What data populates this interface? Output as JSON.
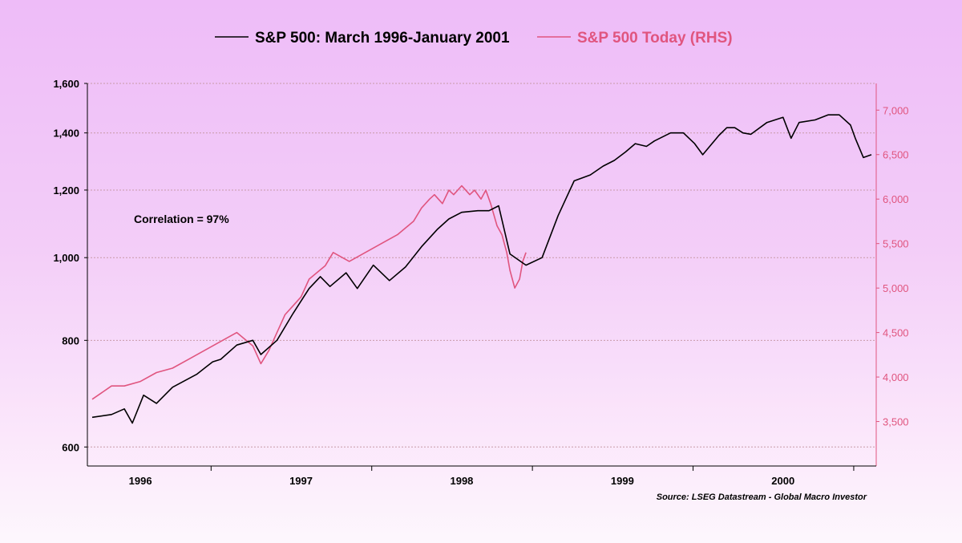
{
  "chart_data": {
    "type": "line",
    "series": [
      {
        "name": "S&P 500: March 1996-January 2001",
        "color": "#000000",
        "axis": "left",
        "x": [
          1996.2,
          1996.32,
          1996.4,
          1996.45,
          1996.52,
          1996.6,
          1996.7,
          1996.85,
          1996.95,
          1997.0,
          1997.1,
          1997.2,
          1997.25,
          1997.35,
          1997.45,
          1997.55,
          1997.62,
          1997.68,
          1997.78,
          1997.85,
          1997.95,
          1998.05,
          1998.15,
          1998.25,
          1998.35,
          1998.42,
          1998.5,
          1998.6,
          1998.67,
          1998.73,
          1998.8,
          1998.9,
          1999.0,
          1999.1,
          1999.2,
          1999.3,
          1999.38,
          1999.45,
          1999.52,
          1999.58,
          1999.65,
          1999.7,
          1999.8,
          1999.88,
          1999.95,
          2000.0,
          2000.1,
          2000.15,
          2000.2,
          2000.25,
          2000.3,
          2000.4,
          2000.5,
          2000.55,
          2000.6,
          2000.7,
          2000.78,
          2000.85,
          2000.92,
          2000.95,
          2001.0,
          2001.05
        ],
        "values": [
          650,
          655,
          665,
          640,
          690,
          675,
          705,
          730,
          755,
          760,
          790,
          800,
          770,
          800,
          860,
          920,
          950,
          925,
          960,
          920,
          980,
          940,
          975,
          1030,
          1080,
          1110,
          1130,
          1135,
          1135,
          1150,
          1010,
          980,
          1000,
          1120,
          1230,
          1250,
          1280,
          1300,
          1330,
          1360,
          1350,
          1370,
          1400,
          1400,
          1360,
          1320,
          1390,
          1420,
          1420,
          1400,
          1395,
          1440,
          1460,
          1380,
          1440,
          1450,
          1470,
          1470,
          1430,
          1380,
          1310,
          1320
        ]
      },
      {
        "name": "S&P 500 Today (RHS)",
        "color": "#e0557f",
        "axis": "right",
        "x": [
          1996.2,
          1996.32,
          1996.4,
          1996.5,
          1996.6,
          1996.7,
          1996.8,
          1996.9,
          1997.0,
          1997.1,
          1997.2,
          1997.25,
          1997.3,
          1997.35,
          1997.4,
          1997.45,
          1997.5,
          1997.55,
          1997.65,
          1997.7,
          1997.8,
          1997.9,
          1998.0,
          1998.1,
          1998.2,
          1998.25,
          1998.3,
          1998.33,
          1998.38,
          1998.42,
          1998.45,
          1998.5,
          1998.55,
          1998.58,
          1998.62,
          1998.65,
          1998.68,
          1998.72,
          1998.75,
          1998.78,
          1998.8,
          1998.83,
          1998.86,
          1998.88,
          1998.9
        ],
        "values": [
          3750,
          3900,
          3900,
          3950,
          4050,
          4100,
          4200,
          4300,
          4400,
          4500,
          4350,
          4150,
          4300,
          4500,
          4700,
          4800,
          4900,
          5100,
          5250,
          5400,
          5300,
          5400,
          5500,
          5600,
          5750,
          5900,
          6000,
          6050,
          5950,
          6100,
          6050,
          6150,
          6050,
          6100,
          6000,
          6100,
          5950,
          5700,
          5600,
          5400,
          5200,
          5000,
          5100,
          5300,
          5400
        ]
      }
    ],
    "title": "",
    "xlabel": "",
    "ylabel": "",
    "x_ticks": [
      "1996",
      "1997",
      "1998",
      "1999",
      "2000"
    ],
    "x_tick_values": [
      1996.5,
      1997.5,
      1998.5,
      1999.5,
      2000.5
    ],
    "xlim": [
      1996.17,
      2001.08
    ],
    "y_left": {
      "scale": "log",
      "ylim": [
        570,
        1600
      ],
      "ticks": [
        600,
        800,
        1000,
        1200,
        1400,
        1600
      ],
      "tick_labels": [
        "600",
        "800",
        "1,000",
        "1,200",
        "1,400",
        "1,600"
      ]
    },
    "y_right": {
      "scale": "linear",
      "ylim": [
        3000,
        7300
      ],
      "ticks": [
        3500,
        4000,
        4500,
        5000,
        5500,
        6000,
        6500,
        7000
      ],
      "tick_labels": [
        "3,500",
        "4,000",
        "4,500",
        "5,000",
        "5,500",
        "6,000",
        "6,500",
        "7,000"
      ]
    },
    "gridlines": true,
    "legend_position": "top-center",
    "annotation": "Correlation = 97%",
    "source": "Source: LSEG Datastream - Global Macro Investor"
  }
}
